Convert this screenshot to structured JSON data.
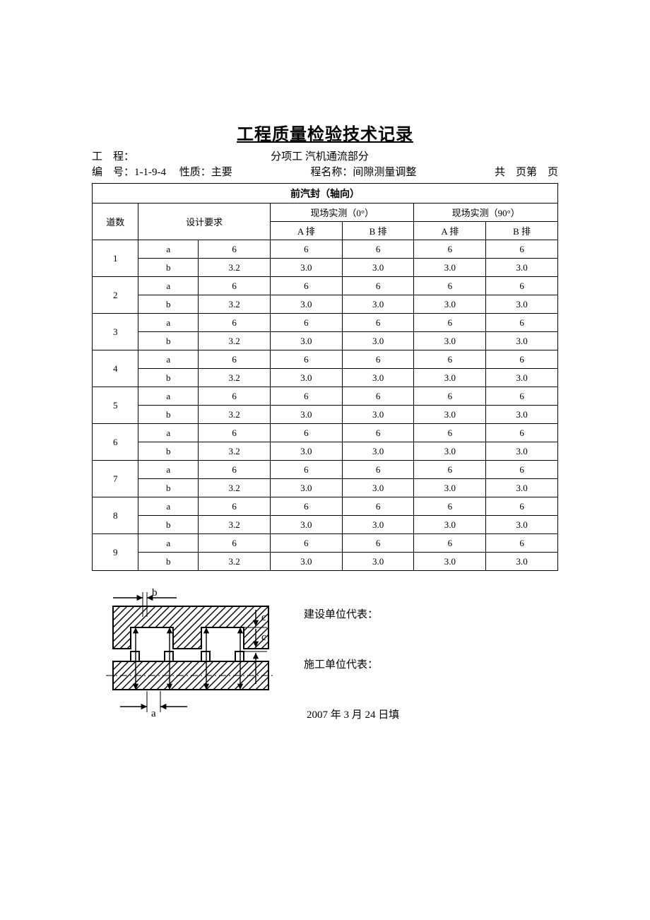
{
  "title": "工程质量检验技术记录",
  "meta": {
    "project_label": "工　程：",
    "number_label": "编　号：",
    "number_value": "1-1-9-4",
    "quality_label": "性质：",
    "quality_value": "主要",
    "subproject_label": "分项工",
    "subproject_value": "汽机通流部分",
    "progname_label": "程名称：",
    "progname_value": "间隙测量调整",
    "page_label": "共　页第　页"
  },
  "table": {
    "section_title": "前汽封（轴向）",
    "col_dao": "道数",
    "col_design": "设计要求",
    "col_site0": "现场实测（0°）",
    "col_site90": "现场实测（90°）",
    "col_a": "A 排",
    "col_b": "B 排",
    "ab_labels": [
      "a",
      "b"
    ],
    "design_a": "6",
    "design_b": "3.2",
    "meas_a": "6",
    "meas_b": "3.0",
    "row_count": 9,
    "row_ids": [
      "1",
      "2",
      "3",
      "4",
      "5",
      "6",
      "7",
      "8",
      "9"
    ]
  },
  "diagram": {
    "label_a": "a",
    "label_b": "b",
    "label_c": "c"
  },
  "signoff": {
    "builder": "建设单位代表：",
    "constructor": "施工单位代表：",
    "date": "2007 年 3 月 24 日填"
  },
  "colors": {
    "line": "#000000",
    "bg": "#ffffff"
  }
}
